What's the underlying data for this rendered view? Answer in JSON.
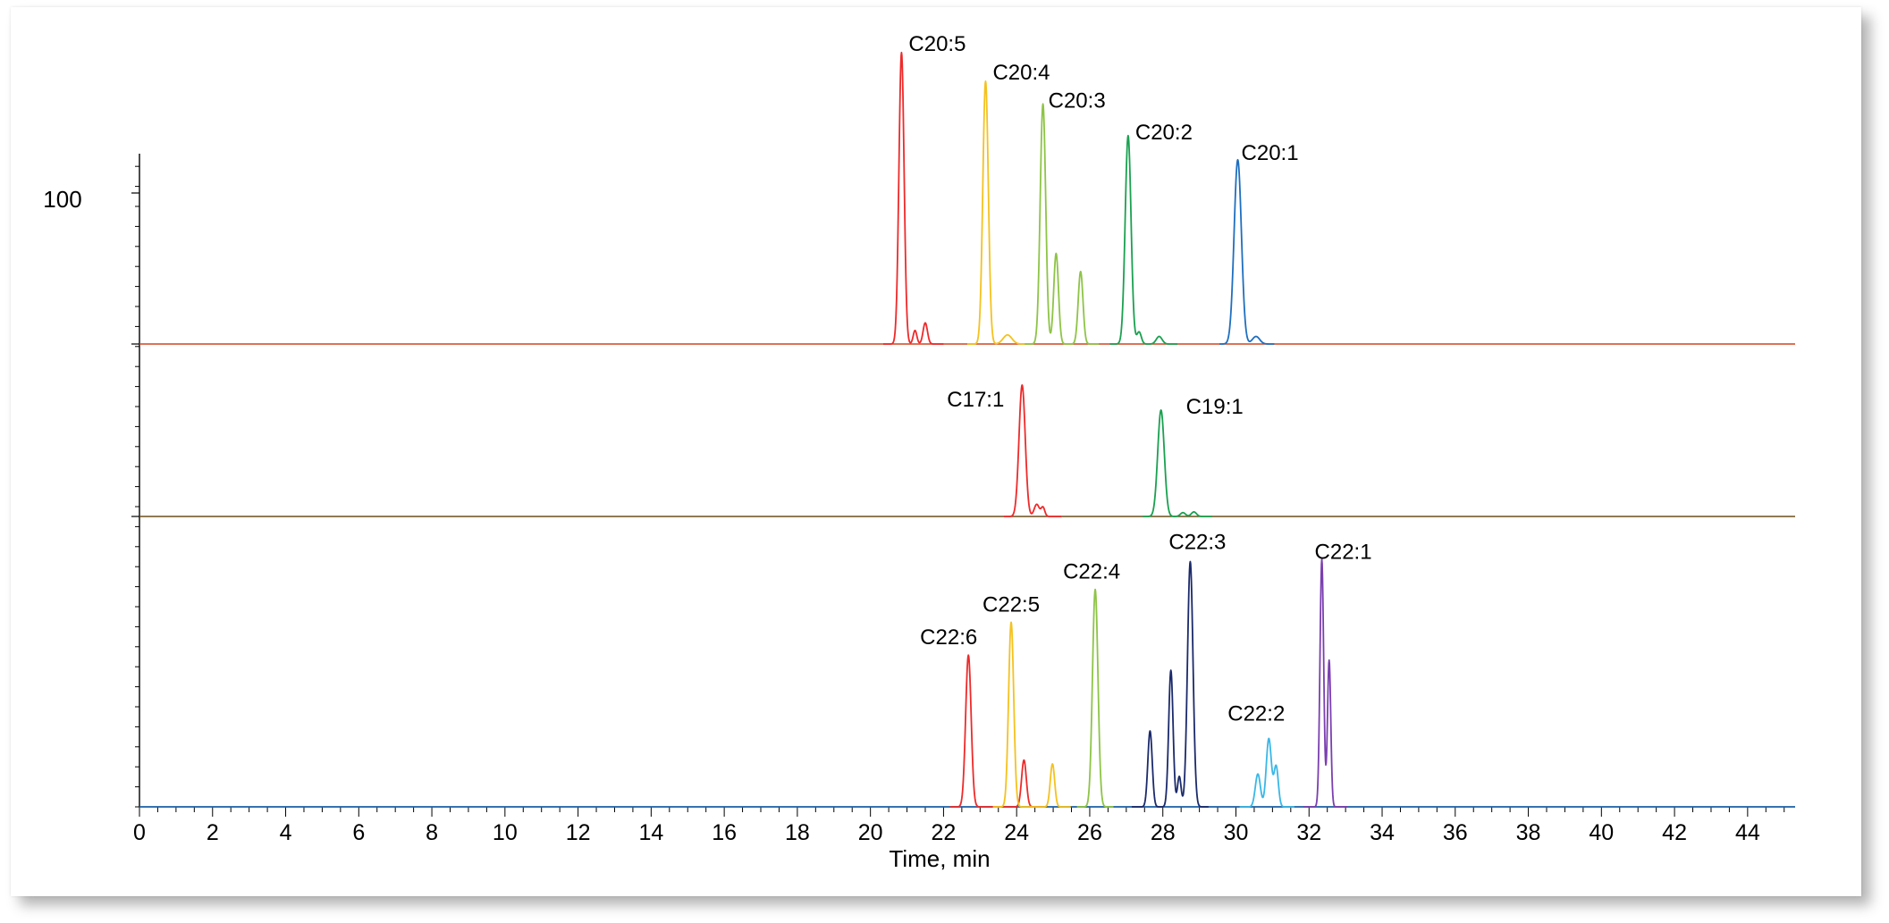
{
  "chart_data": {
    "type": "line",
    "title": "",
    "xlabel": "Time, min",
    "ylabel": "",
    "y_tick_label": "100",
    "xlim": [
      0,
      45.3
    ],
    "x_ticks": [
      0,
      2,
      4,
      6,
      8,
      10,
      12,
      14,
      16,
      18,
      20,
      22,
      24,
      26,
      28,
      30,
      32,
      34,
      36,
      38,
      40,
      42,
      44
    ],
    "grid": false,
    "legend": "none",
    "panels": [
      {
        "name": "top",
        "baseline_color": "#d2451e",
        "peaks": [
          {
            "label": "C20:5",
            "color": "#ee2a2a",
            "show_label": true,
            "components": [
              {
                "t": 20.85,
                "h": 0.965,
                "w": 0.07
              },
              {
                "t": 21.22,
                "h": 0.045,
                "w": 0.05
              },
              {
                "t": 21.5,
                "h": 0.07,
                "w": 0.06
              }
            ]
          },
          {
            "label": "C20:4",
            "color": "#f4c21f",
            "show_label": true,
            "components": [
              {
                "t": 23.15,
                "h": 0.87,
                "w": 0.075
              },
              {
                "t": 23.75,
                "h": 0.03,
                "w": 0.12
              }
            ]
          },
          {
            "label": "C20:3",
            "color": "#8ec446",
            "show_label": true,
            "components": [
              {
                "t": 24.72,
                "h": 0.795,
                "w": 0.075
              },
              {
                "t": 25.08,
                "h": 0.3,
                "w": 0.065
              },
              {
                "t": 25.75,
                "h": 0.24,
                "w": 0.065
              }
            ]
          },
          {
            "label": "C20:2",
            "color": "#1aa150",
            "show_label": true,
            "components": [
              {
                "t": 27.05,
                "h": 0.69,
                "w": 0.08
              },
              {
                "t": 27.35,
                "h": 0.04,
                "w": 0.06
              },
              {
                "t": 27.9,
                "h": 0.025,
                "w": 0.08
              }
            ]
          },
          {
            "label": "C20:1",
            "color": "#1f6fbf",
            "show_label": true,
            "components": [
              {
                "t": 30.05,
                "h": 0.61,
                "w": 0.1
              },
              {
                "t": 30.55,
                "h": 0.025,
                "w": 0.1
              }
            ]
          }
        ]
      },
      {
        "name": "middle",
        "baseline_color": "#6b4f1a",
        "peaks": [
          {
            "label": "C17:1",
            "color": "#ee2a2a",
            "show_label": true,
            "components": [
              {
                "t": 24.15,
                "h": 0.865,
                "w": 0.085
              },
              {
                "t": 24.55,
                "h": 0.08,
                "w": 0.07
              },
              {
                "t": 24.72,
                "h": 0.06,
                "w": 0.05
              }
            ]
          },
          {
            "label": "C19:1",
            "color": "#1aa150",
            "show_label": true,
            "components": [
              {
                "t": 27.95,
                "h": 0.7,
                "w": 0.09
              },
              {
                "t": 28.55,
                "h": 0.025,
                "w": 0.07
              },
              {
                "t": 28.85,
                "h": 0.03,
                "w": 0.07
              }
            ]
          }
        ]
      },
      {
        "name": "bottom",
        "baseline_color": "#1f6fbf",
        "peaks": [
          {
            "label": "C22:6",
            "color": "#ee2a2a",
            "show_label": true,
            "components": [
              {
                "t": 22.68,
                "h": 0.6,
                "w": 0.075
              },
              {
                "t": 24.2,
                "h": 0.185,
                "w": 0.065
              }
            ]
          },
          {
            "label": "C22:5",
            "color": "#f4c21f",
            "show_label": true,
            "components": [
              {
                "t": 23.85,
                "h": 0.73,
                "w": 0.07
              },
              {
                "t": 24.98,
                "h": 0.17,
                "w": 0.06
              }
            ]
          },
          {
            "label": "C22:4",
            "color": "#8ec446",
            "show_label": true,
            "components": [
              {
                "t": 26.15,
                "h": 0.86,
                "w": 0.075
              }
            ]
          },
          {
            "label": "C22:3",
            "color": "#1b2a6b",
            "show_label": true,
            "components": [
              {
                "t": 27.65,
                "h": 0.3,
                "w": 0.06
              },
              {
                "t": 28.22,
                "h": 0.54,
                "w": 0.06
              },
              {
                "t": 28.45,
                "h": 0.12,
                "w": 0.05
              },
              {
                "t": 28.75,
                "h": 0.97,
                "w": 0.075
              }
            ]
          },
          {
            "label": "C22:2",
            "color": "#3ab7e6",
            "show_label": true,
            "components": [
              {
                "t": 30.6,
                "h": 0.13,
                "w": 0.07
              },
              {
                "t": 30.9,
                "h": 0.27,
                "w": 0.07
              },
              {
                "t": 31.1,
                "h": 0.16,
                "w": 0.06
              }
            ]
          },
          {
            "label": "C22:1",
            "color": "#7b3fb0",
            "show_label": true,
            "components": [
              {
                "t": 32.35,
                "h": 0.98,
                "w": 0.05
              },
              {
                "t": 32.55,
                "h": 0.58,
                "w": 0.045
              }
            ]
          }
        ]
      }
    ]
  }
}
